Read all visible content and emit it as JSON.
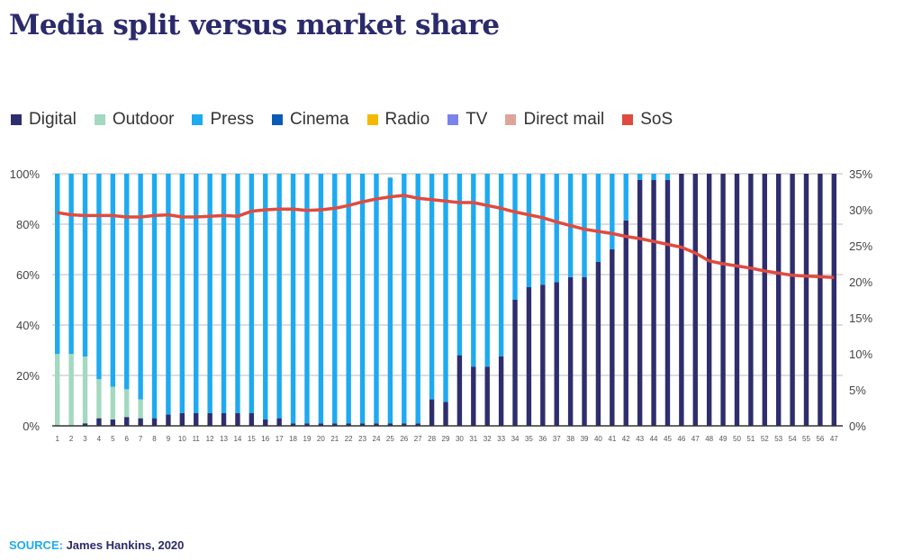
{
  "title": "Media split versus market share",
  "source": {
    "label": "SOURCE:",
    "text": "James Hankins, 2020"
  },
  "chart_data": {
    "type": "bar",
    "stacked": true,
    "title": "Media split versus market share",
    "legend": [
      {
        "name": "Digital",
        "color": "#2e2d6e"
      },
      {
        "name": "Outdoor",
        "color": "#a3d9c0"
      },
      {
        "name": "Press",
        "color": "#1eaaf1"
      },
      {
        "name": "Cinema",
        "color": "#0a5bb5"
      },
      {
        "name": "Radio",
        "color": "#f5b800"
      },
      {
        "name": "TV",
        "color": "#7b83eb"
      },
      {
        "name": "Direct mail",
        "color": "#e0a39a"
      },
      {
        "name": "SoS",
        "color": "#e04b3f"
      }
    ],
    "legend_placement": "top-left",
    "categories": [
      "1",
      "2",
      "3",
      "4",
      "5",
      "6",
      "7",
      "8",
      "9",
      "10",
      "11",
      "12",
      "13",
      "14",
      "15",
      "16",
      "17",
      "18",
      "19",
      "20",
      "21",
      "22",
      "23",
      "24",
      "25",
      "26",
      "27",
      "28",
      "29",
      "30",
      "31",
      "32",
      "33",
      "34",
      "35",
      "36",
      "37",
      "38",
      "39",
      "40",
      "41",
      "42",
      "43",
      "44",
      "45",
      "46",
      "47",
      "48",
      "49",
      "50",
      "51",
      "52",
      "53",
      "54",
      "55",
      "56",
      "47"
    ],
    "series": [
      {
        "name": "Digital",
        "axis": "left",
        "values": [
          0,
          0,
          1,
          3,
          2.5,
          3.5,
          3,
          3,
          4.5,
          5,
          5,
          5,
          5,
          5,
          5,
          2.5,
          3,
          1,
          1,
          1,
          1,
          1,
          1,
          1,
          1,
          1,
          1,
          10.5,
          9.5,
          28,
          23.5,
          23.5,
          27.5,
          50,
          55,
          56,
          57,
          59,
          59,
          65,
          70,
          81.5,
          97.5,
          97.5,
          97.5,
          100,
          100,
          100,
          100,
          100,
          100,
          100,
          100,
          100,
          100,
          100,
          100
        ]
      },
      {
        "name": "Outdoor",
        "axis": "left",
        "values": [
          28.5,
          28.5,
          26.5,
          15.5,
          13,
          11,
          7.5,
          0,
          0,
          0,
          0,
          0,
          0,
          0,
          0,
          0,
          0,
          0,
          0,
          0,
          0,
          0,
          0,
          0,
          0,
          0,
          0,
          0,
          0,
          0,
          0,
          0,
          0,
          0,
          0,
          0,
          0,
          0,
          0,
          0,
          0,
          0,
          0,
          0,
          0,
          0,
          0,
          0,
          0,
          0,
          0,
          0,
          0,
          0,
          0,
          0,
          0
        ]
      },
      {
        "name": "Press",
        "axis": "left",
        "values": [
          71.5,
          71.5,
          72.5,
          81.5,
          84.5,
          85.5,
          89.5,
          97,
          95.5,
          95,
          95,
          95,
          95,
          95,
          95,
          97.5,
          97,
          99,
          99,
          99,
          99,
          99,
          99,
          99,
          97.5,
          99,
          99,
          89.5,
          90.5,
          72,
          76.5,
          76.5,
          72.5,
          50,
          45,
          44,
          43,
          41,
          41,
          35,
          30,
          18.5,
          2.5,
          2.5,
          2.5,
          0,
          0,
          0,
          0,
          0,
          0,
          0,
          0,
          0,
          0,
          0,
          0
        ]
      },
      {
        "name": "SoS",
        "type": "line",
        "axis": "right",
        "values": [
          29.6,
          29.3,
          29.2,
          29.2,
          29.2,
          29.0,
          29.0,
          29.2,
          29.3,
          29.0,
          29.0,
          29.1,
          29.2,
          29.1,
          29.8,
          30.0,
          30.1,
          30.1,
          29.9,
          30.0,
          30.2,
          30.6,
          31.1,
          31.5,
          31.8,
          32.0,
          31.6,
          31.4,
          31.2,
          31.0,
          31.0,
          30.6,
          30.2,
          29.7,
          29.3,
          28.9,
          28.3,
          27.8,
          27.3,
          27.0,
          26.7,
          26.3,
          26.0,
          25.6,
          25.2,
          24.8,
          24.0,
          22.9,
          22.5,
          22.2,
          21.9,
          21.5,
          21.2,
          20.9,
          20.8,
          20.7,
          20.6
        ]
      }
    ],
    "y_left": {
      "range": [
        0,
        100
      ],
      "ticks": [
        "0%",
        "20%",
        "40%",
        "60%",
        "80%",
        "100%"
      ]
    },
    "y_right": {
      "range": [
        0,
        35
      ],
      "ticks": [
        "0%",
        "5%",
        "10%",
        "15%",
        "20%",
        "25%",
        "30%",
        "35%"
      ]
    },
    "grid": true
  }
}
